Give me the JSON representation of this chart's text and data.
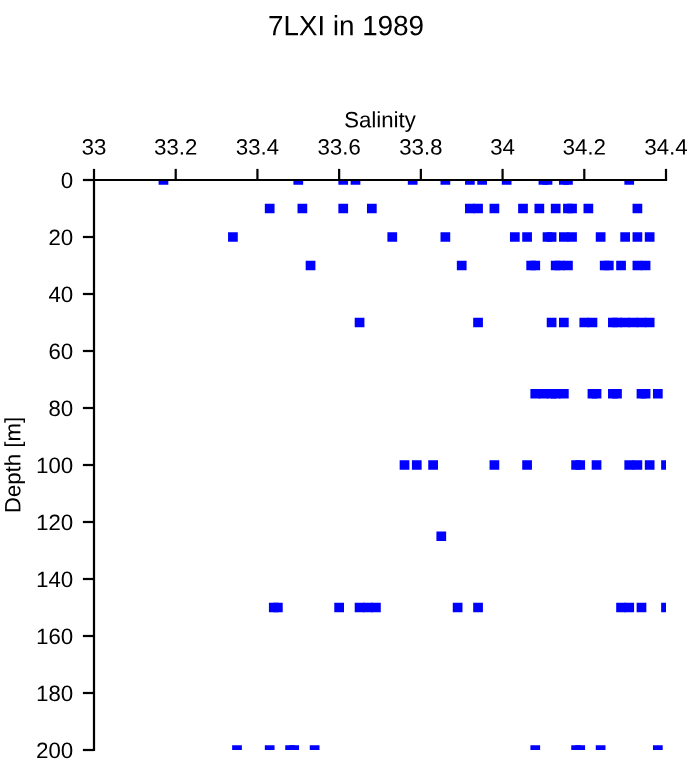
{
  "chart_data": {
    "type": "scatter",
    "title": "7LXI in 1989",
    "xlabel": "Salinity",
    "ylabel": "Depth [m]",
    "xlim": [
      33,
      34.4
    ],
    "xticks": [
      33,
      33.2,
      33.4,
      33.6,
      33.8,
      34,
      34.2,
      34.4
    ],
    "ylim": [
      200,
      0
    ],
    "yticks": [
      0,
      20,
      40,
      60,
      80,
      100,
      120,
      140,
      160,
      180,
      200
    ],
    "marker": "square",
    "grid": false,
    "legend": false,
    "series": [
      {
        "color": "#0000ff",
        "x": [
          33.17,
          33.5,
          33.61,
          33.64,
          33.78,
          33.86,
          33.92,
          33.95,
          34.01,
          34.1,
          34.11,
          34.15,
          34.16,
          34.31,
          33.43,
          33.51,
          33.61,
          33.68,
          33.92,
          33.94,
          33.98,
          34.05,
          34.09,
          34.13,
          34.16,
          34.17,
          34.21,
          34.33,
          33.34,
          33.73,
          33.86,
          34.03,
          34.06,
          34.11,
          34.12,
          34.15,
          34.17,
          34.24,
          34.3,
          34.33,
          34.36,
          33.53,
          33.9,
          34.07,
          34.08,
          34.13,
          34.14,
          34.16,
          34.25,
          34.26,
          34.29,
          34.33,
          34.35,
          33.65,
          33.94,
          34.12,
          34.15,
          34.2,
          34.22,
          34.27,
          34.28,
          34.3,
          34.32,
          34.34,
          34.36,
          34.08,
          34.1,
          34.12,
          34.13,
          34.15,
          34.22,
          34.23,
          34.27,
          34.28,
          34.34,
          34.35,
          34.38,
          33.76,
          33.79,
          33.83,
          33.98,
          34.06,
          34.18,
          34.19,
          34.23,
          34.31,
          34.33,
          34.36,
          34.4,
          33.85,
          33.44,
          33.45,
          33.6,
          33.65,
          33.67,
          33.69,
          33.89,
          33.94,
          34.29,
          34.31,
          34.34,
          34.4,
          33.35,
          33.43,
          33.48,
          33.49,
          33.54,
          34.08,
          34.18,
          34.19,
          34.24,
          34.38
        ],
        "values": [
          0,
          0,
          0,
          0,
          0,
          0,
          0,
          0,
          0,
          0,
          0,
          0,
          0,
          0,
          10,
          10,
          10,
          10,
          10,
          10,
          10,
          10,
          10,
          10,
          10,
          10,
          10,
          10,
          20,
          20,
          20,
          20,
          20,
          20,
          20,
          20,
          20,
          20,
          20,
          20,
          20,
          30,
          30,
          30,
          30,
          30,
          30,
          30,
          30,
          30,
          30,
          30,
          30,
          50,
          50,
          50,
          50,
          50,
          50,
          50,
          50,
          50,
          50,
          50,
          50,
          75,
          75,
          75,
          75,
          75,
          75,
          75,
          75,
          75,
          75,
          75,
          75,
          100,
          100,
          100,
          100,
          100,
          100,
          100,
          100,
          100,
          100,
          100,
          100,
          125,
          150,
          150,
          150,
          150,
          150,
          150,
          150,
          150,
          150,
          150,
          150,
          150,
          200,
          200,
          200,
          200,
          200,
          200,
          200,
          200,
          200,
          200
        ]
      }
    ]
  }
}
